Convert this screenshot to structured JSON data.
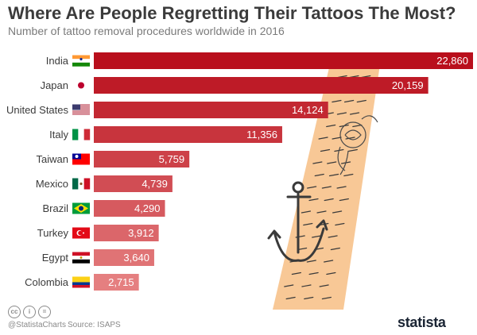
{
  "title": "Where Are People Regretting Their Tattoos The Most?",
  "subtitle": "Number of tattoo removal procedures worldwide in 2016",
  "footer": {
    "handle": "@StatistaCharts",
    "source": "Source: ISAPS",
    "brand": "statista"
  },
  "colors": {
    "bar_top": "#b90f1c",
    "bar_bottom": "#e57f80",
    "arm": "#f8c896",
    "text": "#3b3b3b"
  },
  "chart_data": {
    "type": "bar",
    "orientation": "horizontal",
    "categories": [
      "India",
      "Japan",
      "United States",
      "Italy",
      "Taiwan",
      "Mexico",
      "Brazil",
      "Turkey",
      "Egypt",
      "Colombia"
    ],
    "values": [
      22860,
      20159,
      14124,
      11356,
      5759,
      4739,
      4290,
      3912,
      3640,
      2715
    ],
    "labels": [
      "22,860",
      "20,159",
      "14,124",
      "11,356",
      "5,759",
      "4,739",
      "4,290",
      "3,912",
      "3,640",
      "2,715"
    ],
    "title": "Where Are People Regretting Their Tattoos The Most?",
    "subtitle": "Number of tattoo removal procedures worldwide in 2016",
    "xlabel": "",
    "ylabel": "",
    "grid": false,
    "legend": "none"
  }
}
